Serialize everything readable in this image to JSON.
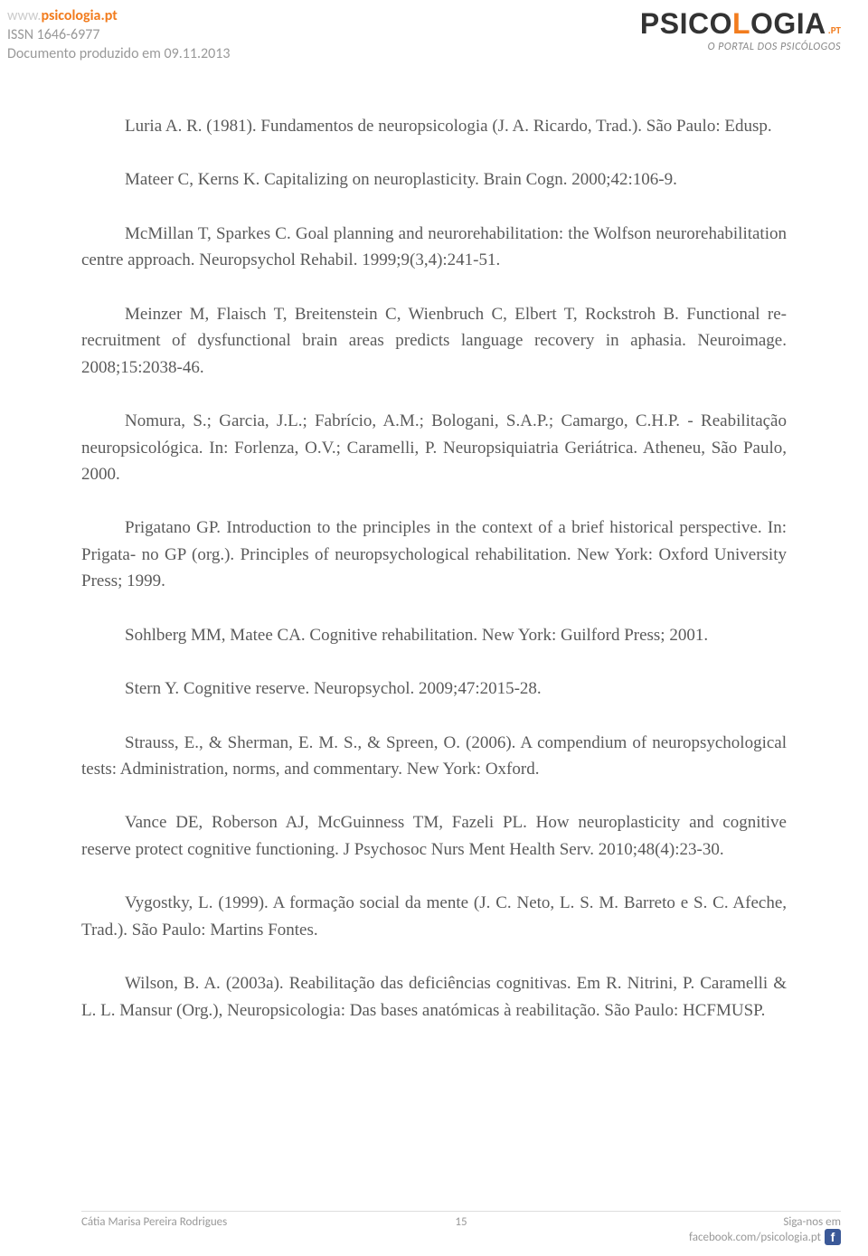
{
  "header": {
    "url_prefix": "www.",
    "url_main": "psicologia.pt",
    "issn": "ISSN 1646-6977",
    "doc_date": "Documento produzido em 09.11.2013",
    "logo_pre": "PSICO",
    "logo_accent": "L",
    "logo_post": "OGIA",
    "logo_suffix": ".PT",
    "logo_sub": "O PORTAL DOS PSICÓLOGOS"
  },
  "references": [
    "Luria A. R. (1981). Fundamentos de neuropsicologia (J. A. Ricardo, Trad.). São Paulo: Edusp.",
    "Mateer C, Kerns K. Capitalizing on neuroplasticity. Brain Cogn. 2000;42:106-9.",
    "McMillan T, Sparkes C. Goal planning and neurorehabilitation: the Wolfson neurorehabilitation centre approach. Neuropsychol Rehabil. 1999;9(3,4):241-51.",
    "Meinzer M, Flaisch T, Breitenstein C, Wienbruch C, Elbert T, Rockstroh B. Functional re-recruitment of dysfunctional brain areas predicts language recovery in aphasia. Neuroimage. 2008;15:2038-46.",
    "Nomura, S.; Garcia, J.L.; Fabrício, A.M.; Bologani, S.A.P.; Camargo, C.H.P. - Reabilitação neuropsicológica. In: Forlenza, O.V.; Caramelli, P. Neuropsiquiatria Geriátrica. Atheneu, São Paulo, 2000.",
    "Prigatano GP. Introduction to the principles in the context of a brief historical perspective. In: Prigata- no GP (org.). Principles of neuropsychological rehabilitation. New York: Oxford University Press; 1999.",
    "Sohlberg MM, Matee CA. Cognitive rehabilitation. New York: Guilford Press; 2001.",
    "Stern Y. Cognitive reserve. Neuropsychol. 2009;47:2015-28.",
    "Strauss, E., & Sherman, E. M. S., & Spreen, O. (2006). A compendium of neuropsychological tests: Administration, norms, and commentary. New York: Oxford.",
    "Vance DE, Roberson AJ, McGuinness TM, Fazeli PL. How neuroplasticity and cognitive reserve protect cognitive functioning. J Psychosoc Nurs Ment Health Serv. 2010;48(4):23-30.",
    "Vygostky, L. (1999). A formação social da mente (J. C. Neto, L. S. M. Barreto e S. C. Afeche, Trad.). São Paulo: Martins Fontes.",
    "Wilson, B. A. (2003a). Reabilitação das deficiências cognitivas. Em R. Nitrini, P. Caramelli & L. L. Mansur (Org.), Neuropsicologia: Das bases anatómicas à reabilitação. São Paulo: HCFMUSP."
  ],
  "footer": {
    "author": "Cátia Marisa Pereira Rodrigues",
    "page_number": "15",
    "follow": "Siga-nos em",
    "fb_text": "facebook.com/psicologia.pt",
    "fb_letter": "f"
  },
  "colors": {
    "accent": "#f27c1e",
    "text_body": "#5a5a5a",
    "text_muted": "#999999",
    "fb_bg": "#3b5998"
  }
}
